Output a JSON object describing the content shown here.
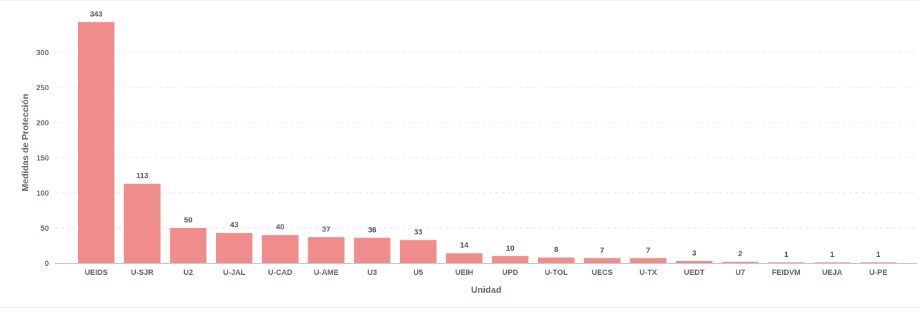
{
  "chart_data": {
    "type": "bar",
    "title": "",
    "xlabel": "Unidad",
    "ylabel": "Medidas de Protección",
    "ylim": [
      0,
      343
    ],
    "yticks": [
      0,
      50,
      100,
      150,
      200,
      250,
      300
    ],
    "grid": true,
    "bar_color": "#f08c8c",
    "categories": [
      "UEIDS",
      "U-SJR",
      "U2",
      "U-JAL",
      "U-CAD",
      "U-AME",
      "U3",
      "U5",
      "UEIH",
      "UPD",
      "U-TOL",
      "UECS",
      "U-TX",
      "UEDT",
      "U7",
      "FEIDVM",
      "UEJA",
      "U-PE"
    ],
    "values": [
      343,
      113,
      50,
      43,
      40,
      37,
      36,
      33,
      14,
      10,
      8,
      7,
      7,
      3,
      2,
      1,
      1,
      1
    ]
  }
}
